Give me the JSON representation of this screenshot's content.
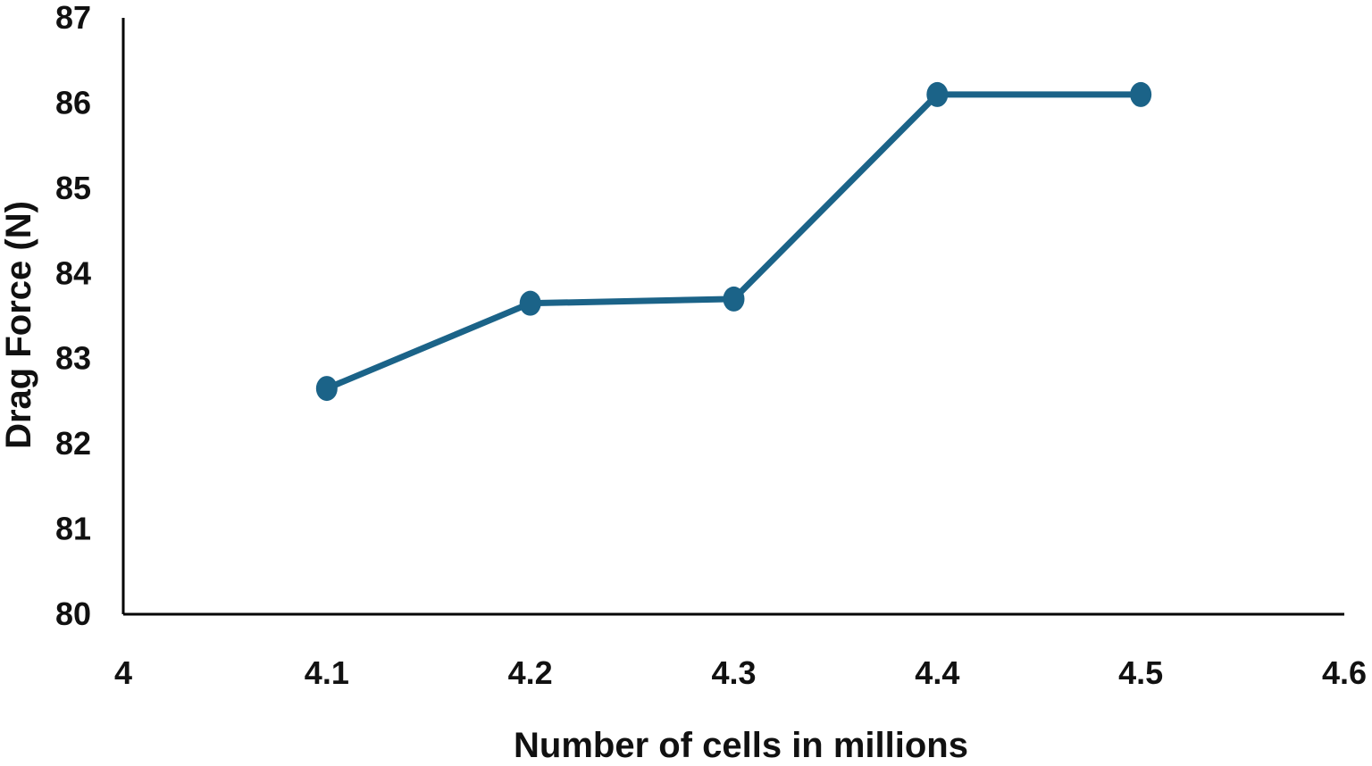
{
  "chart_data": {
    "type": "line",
    "title": "",
    "xlabel": "Number of cells in millions",
    "ylabel": "Drag Force (N)",
    "xlim": [
      4,
      4.6
    ],
    "ylim": [
      80,
      87
    ],
    "x_ticks": [
      "4",
      "4.1",
      "4.2",
      "4.3",
      "4.4",
      "4.5",
      "4.6"
    ],
    "y_ticks": [
      "80",
      "81",
      "82",
      "83",
      "84",
      "85",
      "86",
      "87"
    ],
    "grid": false,
    "legend": "none",
    "series": [
      {
        "color": "#1b6388",
        "x": [
          4.1,
          4.2,
          4.3,
          4.4,
          4.5
        ],
        "y": [
          82.65,
          83.65,
          83.7,
          86.1,
          86.1
        ]
      }
    ]
  }
}
